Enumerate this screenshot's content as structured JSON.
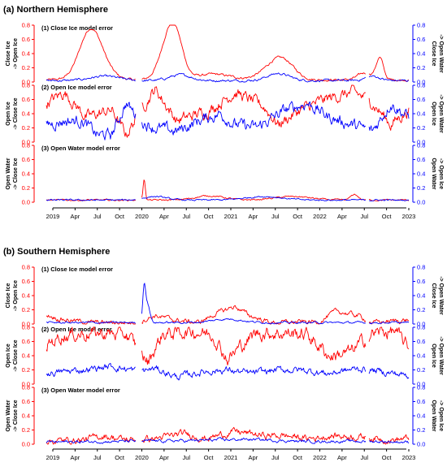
{
  "chart_data": {
    "type": "line",
    "x_tick_labels": [
      "2019",
      "Apr",
      "Jul",
      "Oct",
      "2020",
      "Apr",
      "Jul",
      "Oct",
      "2021",
      "Apr",
      "Jul",
      "Oct",
      "2022",
      "Apr",
      "Jul",
      "Oct",
      "2023"
    ],
    "x_range": [
      "2019-01-01",
      "2023-01-01"
    ],
    "y_ticks": [
      "0.0",
      "0.2",
      "0.4",
      "0.6",
      "0.8"
    ],
    "ylim": [
      0,
      0.8
    ],
    "series_colors": {
      "left": "#ff0000",
      "right": "#0000ff"
    },
    "hemispheres": [
      {
        "title": "(a) Northern Hemisphere",
        "panels": [
          {
            "title": "(1) Close Ice model error",
            "left_ylabel": [
              "Close Ice",
              "-> Open Ice"
            ],
            "right_ylabel": [
              "Close Ice",
              "-> Open Water"
            ],
            "red_series": {
              "base": 0.03,
              "noise": 0.012,
              "peaks": [
                [
                  0.12,
                  0.55,
                  0.03
                ],
                [
                  0.14,
                  0.2,
                  0.035
                ],
                [
                  0.34,
                  0.6,
                  0.025
                ],
                [
                  0.36,
                  0.28,
                  0.02
                ],
                [
                  0.46,
                  0.08,
                  0.05
                ],
                [
                  0.63,
                  0.2,
                  0.035
                ],
                [
                  0.66,
                  0.15,
                  0.03
                ],
                [
                  0.88,
                  0.1,
                  0.02
                ],
                [
                  0.92,
                  0.3,
                  0.01
                ]
              ]
            },
            "blue_series": {
              "base": 0.02,
              "noise": 0.012,
              "peaks": [
                [
                  0.16,
                  0.06,
                  0.04
                ],
                [
                  0.37,
                  0.08,
                  0.03
                ],
                [
                  0.64,
                  0.1,
                  0.03
                ],
                [
                  0.9,
                  0.06,
                  0.02
                ]
              ]
            }
          },
          {
            "title": "(2) Open Ice model error",
            "left_ylabel": [
              "Open Ice",
              "-> Close Ice"
            ],
            "right_ylabel": [
              "Open Ice",
              "-> Open Water"
            ],
            "red_series": {
              "base_curve": [
                [
                  0.0,
                  0.55
                ],
                [
                  0.05,
                  0.7
                ],
                [
                  0.11,
                  0.35
                ],
                [
                  0.18,
                  0.45
                ],
                [
                  0.22,
                  0.1
                ],
                [
                  0.26,
                  0.45
                ],
                [
                  0.3,
                  0.75
                ],
                [
                  0.36,
                  0.3
                ],
                [
                  0.45,
                  0.45
                ],
                [
                  0.52,
                  0.7
                ],
                [
                  0.6,
                  0.5
                ],
                [
                  0.64,
                  0.25
                ],
                [
                  0.7,
                  0.45
                ],
                [
                  0.78,
                  0.62
                ],
                [
                  0.85,
                  0.7
                ],
                [
                  0.9,
                  0.55
                ],
                [
                  0.95,
                  0.25
                ],
                [
                  1.0,
                  0.45
                ]
              ],
              "noise": 0.06
            },
            "blue_series": {
              "base_curve": [
                [
                  0.0,
                  0.25
                ],
                [
                  0.05,
                  0.3
                ],
                [
                  0.1,
                  0.3
                ],
                [
                  0.14,
                  0.1
                ],
                [
                  0.18,
                  0.1
                ],
                [
                  0.22,
                  0.55
                ],
                [
                  0.26,
                  0.3
                ],
                [
                  0.3,
                  0.2
                ],
                [
                  0.36,
                  0.15
                ],
                [
                  0.42,
                  0.3
                ],
                [
                  0.48,
                  0.4
                ],
                [
                  0.52,
                  0.25
                ],
                [
                  0.58,
                  0.2
                ],
                [
                  0.66,
                  0.45
                ],
                [
                  0.72,
                  0.55
                ],
                [
                  0.78,
                  0.35
                ],
                [
                  0.84,
                  0.25
                ],
                [
                  0.9,
                  0.15
                ],
                [
                  0.95,
                  0.55
                ],
                [
                  1.0,
                  0.35
                ]
              ],
              "noise": 0.06
            }
          },
          {
            "title": "(3) Open Water model error",
            "left_ylabel": [
              "Open Water",
              "-> Close Ice"
            ],
            "right_ylabel": [
              "Open Water",
              "-> Open Ice"
            ],
            "red_series": {
              "base": 0.03,
              "noise": 0.008,
              "peaks": [
                [
                  0.27,
                  0.3,
                  0.003
                ],
                [
                  0.45,
                  0.06,
                  0.04
                ],
                [
                  0.68,
                  0.05,
                  0.05
                ],
                [
                  0.85,
                  0.08,
                  0.01
                ]
              ]
            },
            "blue_series": {
              "base": 0.03,
              "noise": 0.008,
              "peaks": [
                [
                  0.3,
                  0.05,
                  0.03
                ],
                [
                  0.6,
                  0.05,
                  0.05
                ]
              ]
            }
          }
        ]
      },
      {
        "title": "(b) Southern Hemisphere",
        "panels": [
          {
            "title": "(1) Close Ice model error",
            "left_ylabel": [
              "Close Ice",
              "-> Open Ice"
            ],
            "right_ylabel": [
              "Close Ice",
              "-> Open Water"
            ],
            "red_series": {
              "base_curve": [
                [
                  0.0,
                  0.14
                ],
                [
                  0.03,
                  0.08
                ],
                [
                  0.07,
                  0.05
                ],
                [
                  0.12,
                  0.02
                ],
                [
                  0.25,
                  0.02
                ],
                [
                  0.3,
                  0.12
                ],
                [
                  0.36,
                  0.05
                ],
                [
                  0.42,
                  0.02
                ],
                [
                  0.47,
                  0.15
                ],
                [
                  0.52,
                  0.25
                ],
                [
                  0.56,
                  0.12
                ],
                [
                  0.62,
                  0.02
                ],
                [
                  0.75,
                  0.03
                ],
                [
                  0.8,
                  0.18
                ],
                [
                  0.86,
                  0.12
                ],
                [
                  0.9,
                  0.02
                ],
                [
                  1.0,
                  0.06
                ]
              ],
              "noise": 0.025
            },
            "blue_series": {
              "base": 0.02,
              "noise": 0.01,
              "peaks": [
                [
                  0.27,
                  0.5,
                  0.004
                ],
                [
                  0.28,
                  0.25,
                  0.006
                ],
                [
                  0.5,
                  0.05,
                  0.04
                ]
              ]
            }
          },
          {
            "title": "(2) Open Ice model error",
            "left_ylabel": [
              "Open Ice",
              "-> Close Ice"
            ],
            "right_ylabel": [
              "Open Ice",
              "-> Open Water"
            ],
            "red_series": {
              "base_curve": [
                [
                  0.0,
                  0.55
                ],
                [
                  0.04,
                  0.68
                ],
                [
                  0.12,
                  0.72
                ],
                [
                  0.22,
                  0.7
                ],
                [
                  0.26,
                  0.45
                ],
                [
                  0.28,
                  0.3
                ],
                [
                  0.32,
                  0.7
                ],
                [
                  0.4,
                  0.75
                ],
                [
                  0.46,
                  0.7
                ],
                [
                  0.5,
                  0.35
                ],
                [
                  0.54,
                  0.55
                ],
                [
                  0.58,
                  0.72
                ],
                [
                  0.66,
                  0.72
                ],
                [
                  0.72,
                  0.7
                ],
                [
                  0.78,
                  0.4
                ],
                [
                  0.84,
                  0.45
                ],
                [
                  0.9,
                  0.72
                ],
                [
                  0.96,
                  0.75
                ],
                [
                  1.0,
                  0.5
                ]
              ],
              "noise": 0.07
            },
            "blue_series": {
              "base_curve": [
                [
                  0.0,
                  0.15
                ],
                [
                  0.1,
                  0.2
                ],
                [
                  0.18,
                  0.25
                ],
                [
                  0.26,
                  0.18
                ],
                [
                  0.3,
                  0.22
                ],
                [
                  0.36,
                  0.1
                ],
                [
                  0.44,
                  0.18
                ],
                [
                  0.5,
                  0.2
                ],
                [
                  0.56,
                  0.15
                ],
                [
                  0.64,
                  0.2
                ],
                [
                  0.7,
                  0.2
                ],
                [
                  0.78,
                  0.15
                ],
                [
                  0.86,
                  0.22
                ],
                [
                  0.92,
                  0.18
                ],
                [
                  1.0,
                  0.12
                ]
              ],
              "noise": 0.035
            }
          },
          {
            "title": "(3) Open Water model error",
            "left_ylabel": [
              "Open Water",
              "-> Close Ice"
            ],
            "right_ylabel": [
              "Open Water",
              "-> Open Ice"
            ],
            "red_series": {
              "base_curve": [
                [
                  0.0,
                  0.04
                ],
                [
                  0.1,
                  0.06
                ],
                [
                  0.16,
                  0.12
                ],
                [
                  0.22,
                  0.06
                ],
                [
                  0.3,
                  0.08
                ],
                [
                  0.38,
                  0.15
                ],
                [
                  0.44,
                  0.08
                ],
                [
                  0.52,
                  0.18
                ],
                [
                  0.6,
                  0.12
                ],
                [
                  0.66,
                  0.12
                ],
                [
                  0.72,
                  0.08
                ],
                [
                  0.8,
                  0.12
                ],
                [
                  0.88,
                  0.1
                ],
                [
                  0.95,
                  0.06
                ],
                [
                  1.0,
                  0.08
                ]
              ],
              "noise": 0.035
            },
            "blue_series": {
              "base_curve": [
                [
                  0.0,
                  0.03
                ],
                [
                  0.2,
                  0.04
                ],
                [
                  0.4,
                  0.05
                ],
                [
                  0.55,
                  0.07
                ],
                [
                  0.7,
                  0.04
                ],
                [
                  0.9,
                  0.04
                ],
                [
                  1.0,
                  0.03
                ]
              ],
              "noise": 0.015
            }
          }
        ]
      }
    ],
    "data_gaps": [
      [
        0.247,
        0.262
      ],
      [
        0.882,
        0.89
      ]
    ]
  }
}
